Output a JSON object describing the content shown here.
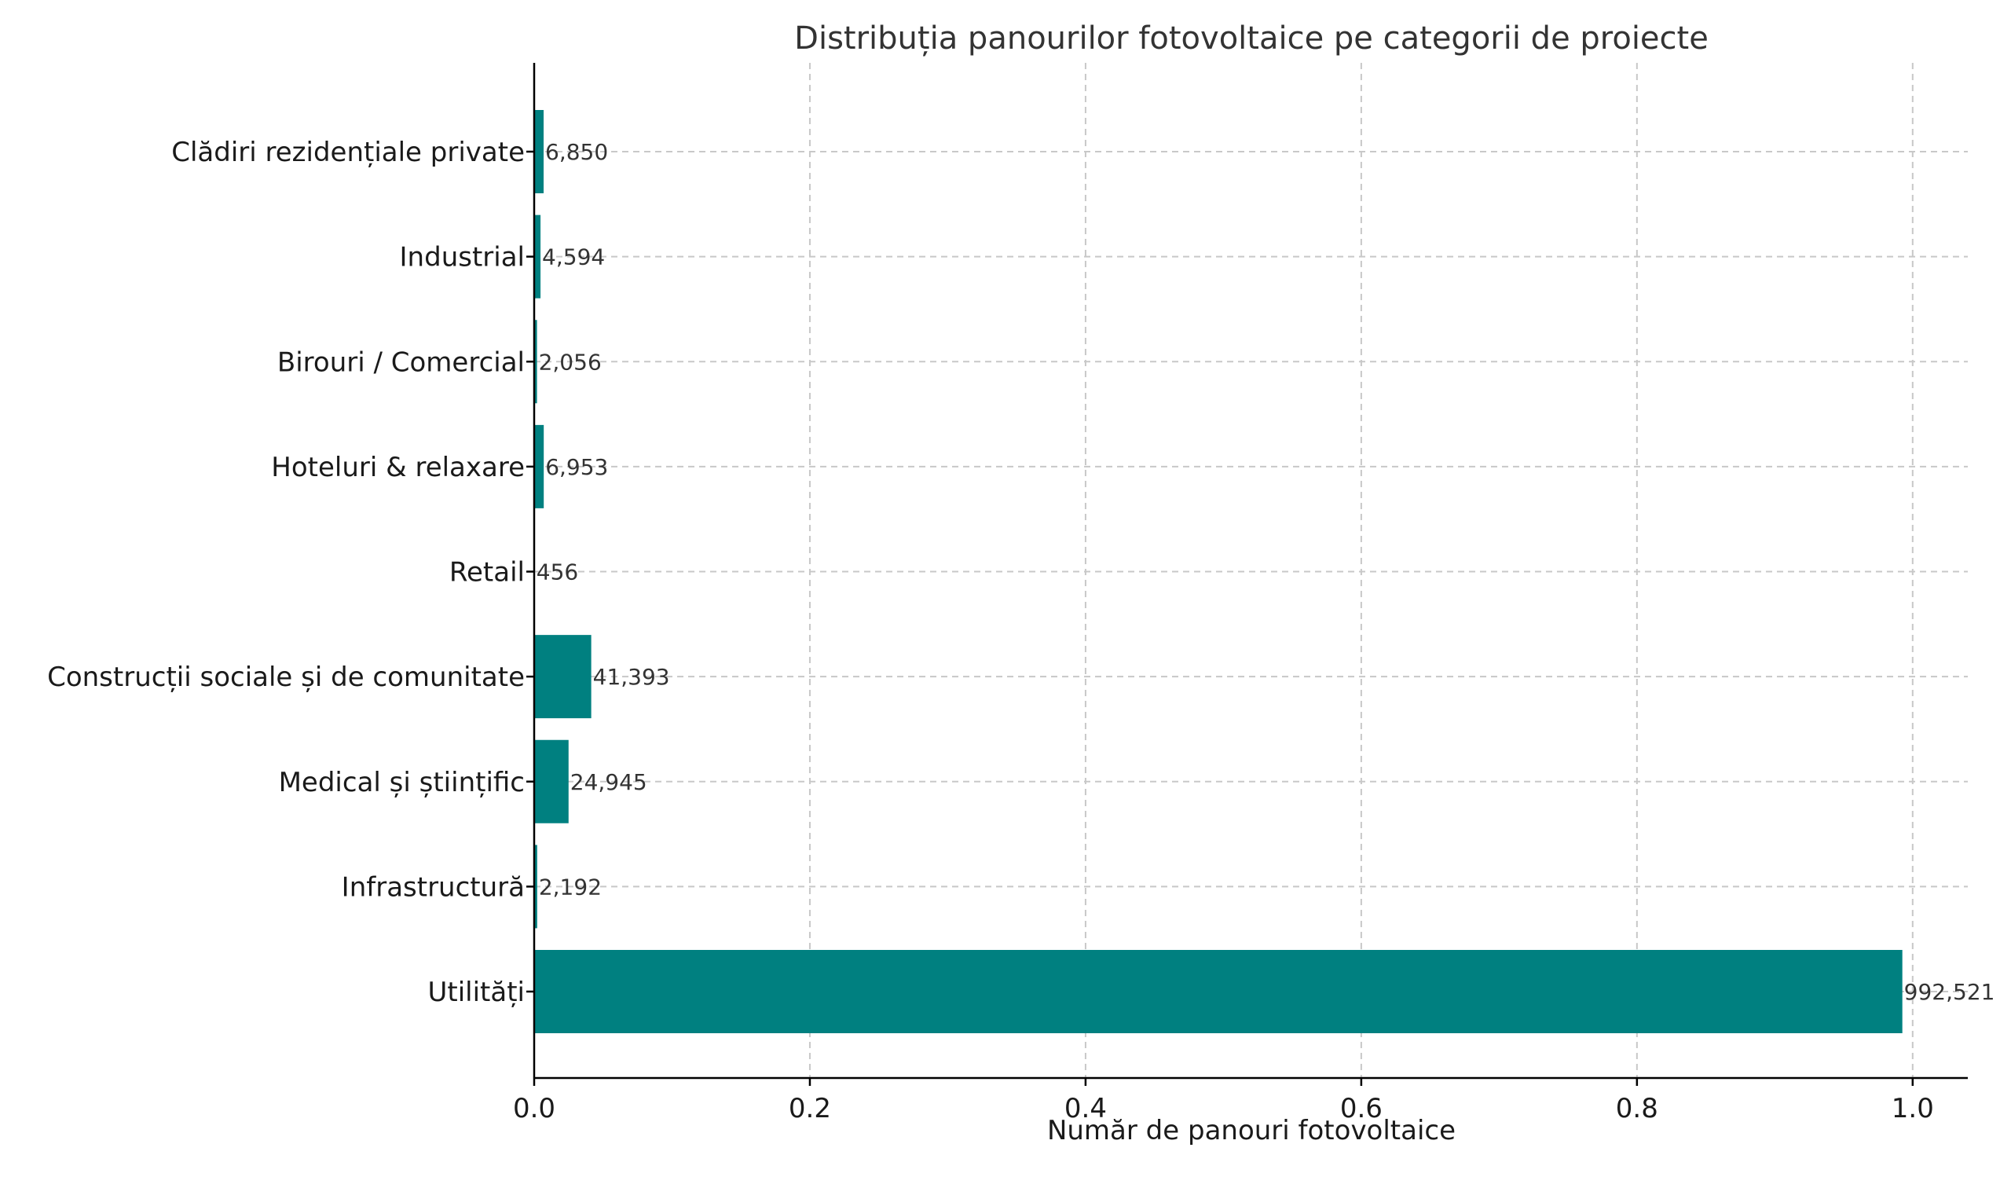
{
  "chart_data": {
    "type": "bar",
    "orientation": "horizontal",
    "title": "Distribuția panourilor fotovoltaice pe categorii de proiecte",
    "xlabel": "Număr de panouri fotovoltaice",
    "ylabel": "",
    "categories": [
      "Clădiri rezidențiale private",
      "Industrial",
      "Birouri / Comercial",
      "Hoteluri & relaxare",
      "Retail",
      "Construcții sociale și de comunitate",
      "Medical și științific",
      "Infrastructură",
      "Utilități"
    ],
    "values": [
      6850,
      4594,
      2056,
      6953,
      456,
      41393,
      24945,
      2192,
      992521
    ],
    "value_labels": [
      "6,850",
      "4,594",
      "2,056",
      "6,953",
      "456",
      "41,393",
      "24,945",
      "2,192",
      "992,521"
    ],
    "x_scale_divisor": 1000000,
    "xlim": [
      0,
      1.04
    ],
    "xticks": [
      0.0,
      0.2,
      0.4,
      0.6,
      0.8,
      1.0
    ],
    "xtick_labels": [
      "0.0",
      "0.2",
      "0.4",
      "0.6",
      "0.8",
      "1.0"
    ],
    "grid": true,
    "bar_color": "#008080"
  }
}
